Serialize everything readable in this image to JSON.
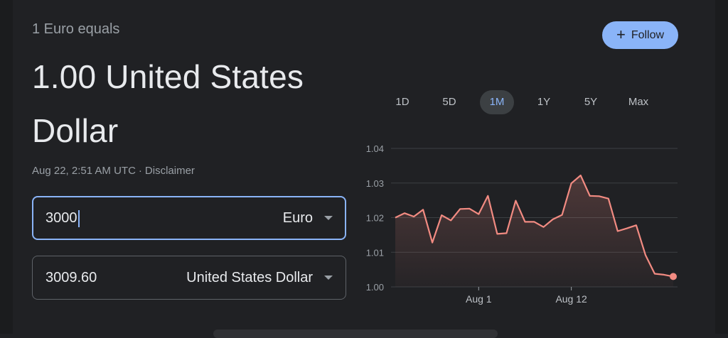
{
  "header": {
    "equals_text": "1 Euro equals",
    "result_line1": "1.00 United States",
    "result_line2": "Dollar",
    "timestamp": "Aug 22, 2:51 AM UTC",
    "separator": "·",
    "disclaimer": "Disclaimer"
  },
  "follow_button": {
    "label": "Follow",
    "icon": "plus-icon"
  },
  "converter": {
    "from": {
      "value": "3000",
      "currency": "Euro"
    },
    "to": {
      "value": "3009.60",
      "currency": "United States Dollar"
    }
  },
  "range_tabs": {
    "items": [
      "1D",
      "5D",
      "1M",
      "1Y",
      "5Y",
      "Max"
    ],
    "active": "1M"
  },
  "colors": {
    "background": "#202124",
    "accent": "#8ab4f8",
    "line": "#f28b82"
  },
  "chart_data": {
    "type": "area",
    "ylim": [
      1.0,
      1.04
    ],
    "y_ticks": [
      "1.04",
      "1.03",
      "1.02",
      "1.01",
      "1.00"
    ],
    "x_tick_labels": [
      {
        "label": "Aug 1",
        "index": 9
      },
      {
        "label": "Aug 12",
        "index": 19
      }
    ],
    "values": [
      1.02,
      1.0213,
      1.0203,
      1.0223,
      1.0128,
      1.0207,
      1.0192,
      1.0225,
      1.0226,
      1.021,
      1.0263,
      1.0153,
      1.0155,
      1.0249,
      1.0188,
      1.0188,
      1.0173,
      1.0195,
      1.0208,
      1.0299,
      1.0322,
      1.0263,
      1.0262,
      1.0255,
      1.0161,
      1.0169,
      1.0178,
      1.0092,
      1.0038,
      1.0035,
      1.003
    ],
    "grid": true
  }
}
